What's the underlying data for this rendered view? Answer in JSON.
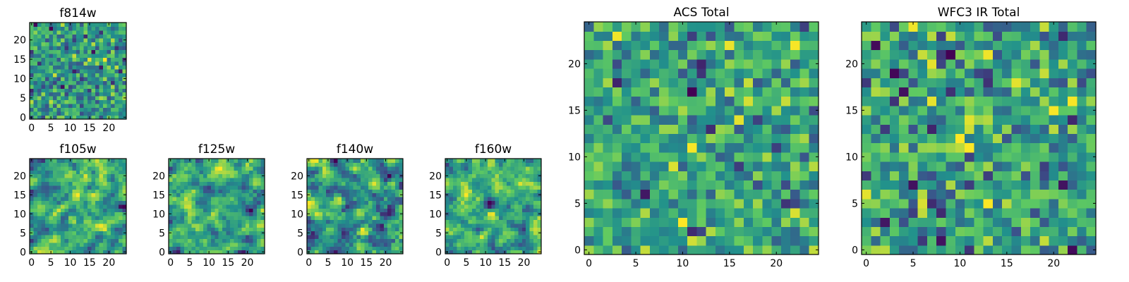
{
  "chart_data": [
    {
      "type": "heatmap",
      "title": "f814w",
      "grid_size": [
        25,
        25
      ],
      "xlim": [
        -0.5,
        24.5
      ],
      "ylim": [
        -0.5,
        24.5
      ],
      "x_ticks": [
        0,
        5,
        10,
        15,
        20
      ],
      "y_ticks": [
        0,
        5,
        10,
        15,
        20
      ],
      "colormap": "viridis",
      "noise_scale": 1,
      "seed": 814
    },
    {
      "type": "heatmap",
      "title": "f105w",
      "grid_size": [
        25,
        25
      ],
      "xlim": [
        -0.5,
        24.5
      ],
      "ylim": [
        -0.5,
        24.5
      ],
      "x_ticks": [
        0,
        5,
        10,
        15,
        20
      ],
      "y_ticks": [
        0,
        5,
        10,
        15,
        20
      ],
      "colormap": "viridis",
      "noise_scale": 2,
      "seed": 105
    },
    {
      "type": "heatmap",
      "title": "f125w",
      "grid_size": [
        25,
        25
      ],
      "xlim": [
        -0.5,
        24.5
      ],
      "ylim": [
        -0.5,
        24.5
      ],
      "x_ticks": [
        0,
        5,
        10,
        15,
        20
      ],
      "y_ticks": [
        0,
        5,
        10,
        15,
        20
      ],
      "colormap": "viridis",
      "noise_scale": 2,
      "seed": 125
    },
    {
      "type": "heatmap",
      "title": "f140w",
      "grid_size": [
        25,
        25
      ],
      "xlim": [
        -0.5,
        24.5
      ],
      "ylim": [
        -0.5,
        24.5
      ],
      "x_ticks": [
        0,
        5,
        10,
        15,
        20
      ],
      "y_ticks": [
        0,
        5,
        10,
        15,
        20
      ],
      "colormap": "viridis",
      "noise_scale": 2,
      "seed": 140
    },
    {
      "type": "heatmap",
      "title": "f160w",
      "grid_size": [
        25,
        25
      ],
      "xlim": [
        -0.5,
        24.5
      ],
      "ylim": [
        -0.5,
        24.5
      ],
      "x_ticks": [
        0,
        5,
        10,
        15,
        20
      ],
      "y_ticks": [
        0,
        5,
        10,
        15,
        20
      ],
      "colormap": "viridis",
      "noise_scale": 2,
      "seed": 160
    },
    {
      "type": "heatmap",
      "title": "ACS Total",
      "grid_size": [
        25,
        25
      ],
      "xlim": [
        -0.5,
        24.5
      ],
      "ylim": [
        -0.5,
        24.5
      ],
      "x_ticks": [
        0,
        5,
        10,
        15,
        20
      ],
      "y_ticks": [
        0,
        5,
        10,
        15,
        20
      ],
      "colormap": "viridis",
      "noise_scale": 1,
      "seed": 9001
    },
    {
      "type": "heatmap",
      "title": "WFC3 IR Total",
      "grid_size": [
        25,
        25
      ],
      "xlim": [
        -0.5,
        24.5
      ],
      "ylim": [
        -0.5,
        24.5
      ],
      "x_ticks": [
        0,
        5,
        10,
        15,
        20
      ],
      "y_ticks": [
        0,
        5,
        10,
        15,
        20
      ],
      "colormap": "viridis",
      "noise_scale": 1,
      "seed": 9002
    }
  ],
  "colors": {
    "viridis_stops": [
      "#440154",
      "#3b528b",
      "#21918c",
      "#5ec962",
      "#fde725"
    ]
  }
}
